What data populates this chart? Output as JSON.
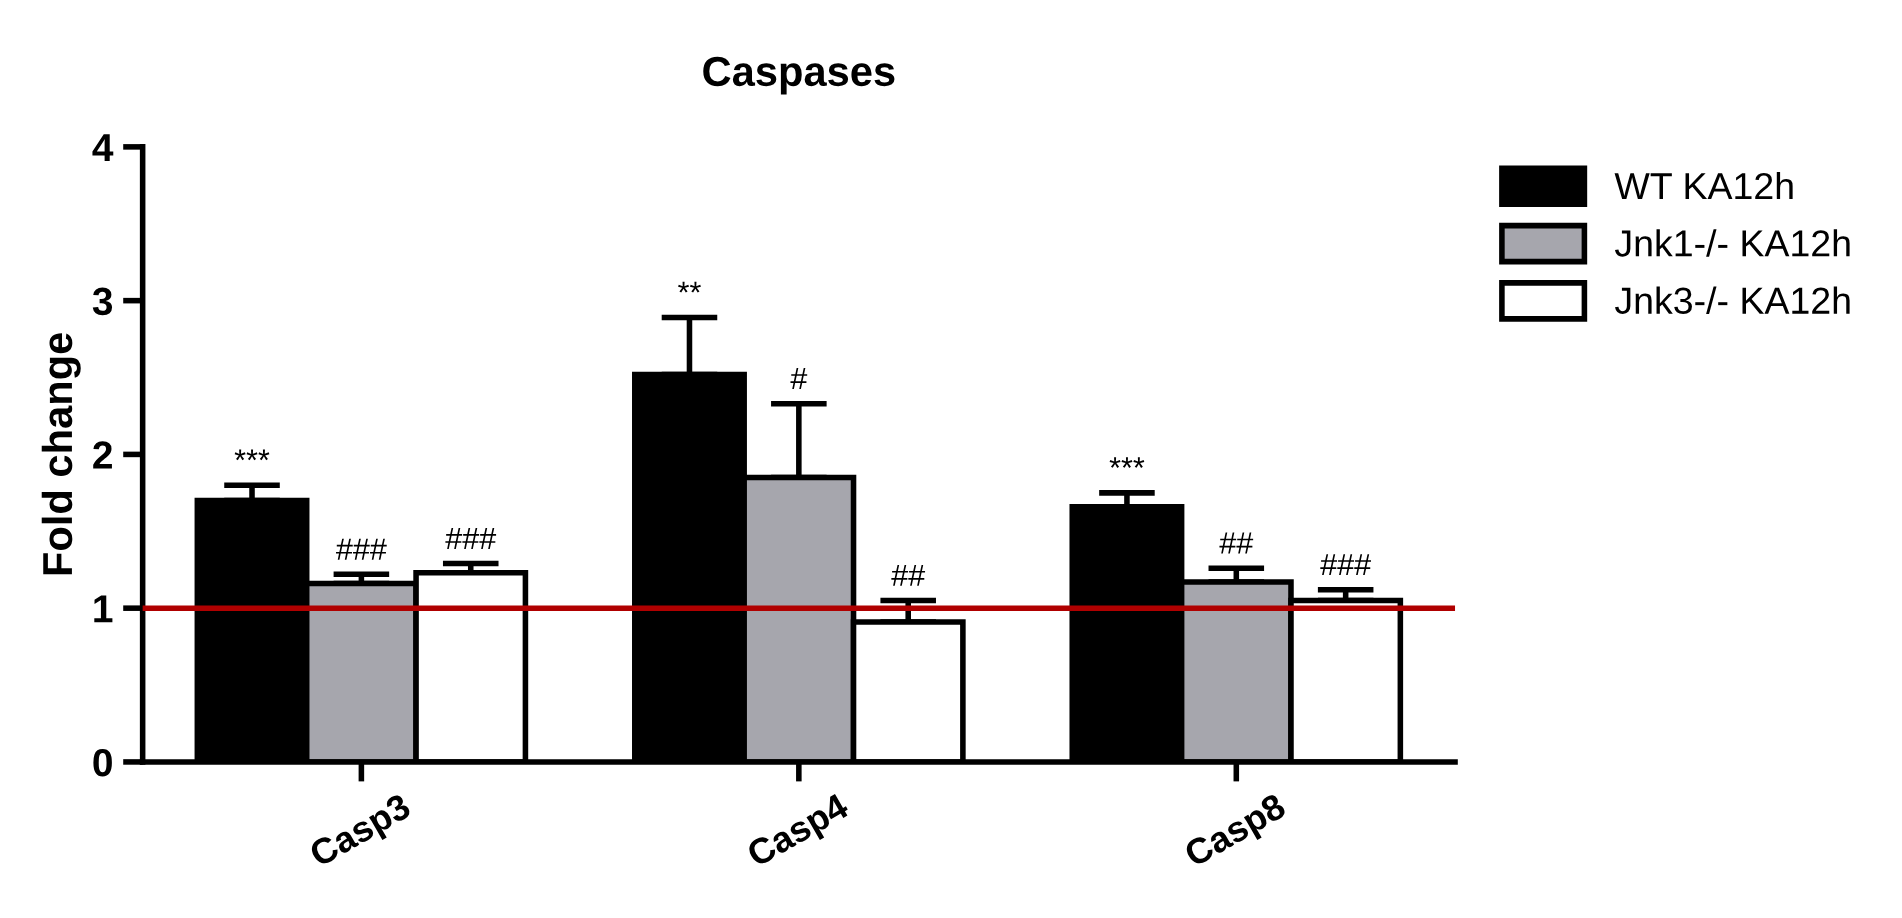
{
  "chart_data": {
    "type": "bar",
    "title": "Caspases",
    "ylabel": "Fold change",
    "categories": [
      "Casp3",
      "Casp4",
      "Casp8"
    ],
    "series": [
      {
        "name": "WT KA12h",
        "color": "#000000",
        "values": [
          1.7,
          2.52,
          1.66
        ],
        "errors": [
          [
            1.7,
            1.8
          ],
          [
            2.52,
            2.89
          ],
          [
            1.66,
            1.75
          ]
        ],
        "value_labels": [
          "***",
          "**",
          "***"
        ]
      },
      {
        "name": "Jnk1-/- KA12h",
        "color": "#a6a6ad",
        "values": [
          1.16,
          1.85,
          1.17
        ],
        "errors": [
          [
            1.16,
            1.22
          ],
          [
            1.85,
            2.33
          ],
          [
            1.17,
            1.26
          ]
        ],
        "value_labels": [
          "###",
          "#",
          "##"
        ]
      },
      {
        "name": "Jnk3-/- KA12h",
        "color": "#ffffff",
        "values": [
          1.23,
          0.91,
          1.05
        ],
        "errors": [
          [
            1.23,
            1.29
          ],
          [
            0.91,
            1.05
          ],
          [
            1.05,
            1.12
          ]
        ],
        "value_labels": [
          "###",
          "##",
          "###"
        ]
      }
    ],
    "ylim": [
      0,
      4
    ],
    "yticks": [
      0,
      1,
      2,
      3,
      4
    ],
    "grid": false,
    "legend": "top right",
    "ref_lines": [
      {
        "axis": "y",
        "value": 1,
        "color": "#b00000",
        "line_style": "solid"
      }
    ]
  }
}
